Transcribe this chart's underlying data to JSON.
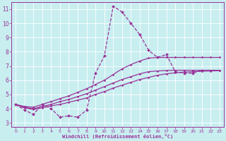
{
  "bg_color": "#c8eef0",
  "line_color": "#993399",
  "grid_color": "#ffffff",
  "ylim_min": 2.7,
  "ylim_max": 11.5,
  "xlim_min": -0.5,
  "xlim_max": 23.5,
  "yticks": [
    3,
    4,
    5,
    6,
    7,
    8,
    9,
    10,
    11
  ],
  "xticks": [
    0,
    1,
    2,
    3,
    4,
    5,
    6,
    7,
    8,
    9,
    10,
    11,
    12,
    13,
    14,
    15,
    16,
    17,
    18,
    19,
    20,
    21,
    22,
    23
  ],
  "xlabel": "Windchill (Refroidissement éolien,°C)",
  "series": [
    {
      "x": [
        0,
        1,
        2,
        3,
        4,
        5,
        6,
        7,
        8,
        9,
        10,
        11,
        12,
        13,
        14,
        15,
        16,
        17,
        18,
        19,
        20,
        21
      ],
      "y": [
        4.3,
        3.9,
        3.6,
        4.3,
        4.0,
        3.4,
        3.5,
        3.4,
        3.9,
        6.5,
        7.7,
        11.2,
        10.8,
        10.0,
        9.2,
        8.1,
        7.6,
        7.8,
        6.6,
        6.5,
        6.5,
        6.7
      ],
      "linestyle": "--",
      "linewidth": 0.9,
      "marker": "D",
      "markersize": 2.0
    },
    {
      "x": [
        0,
        1,
        2,
        3,
        4,
        5,
        6,
        7,
        8,
        9,
        10,
        11,
        12,
        13,
        14,
        15,
        16,
        17,
        18,
        19,
        20,
        21,
        22,
        23
      ],
      "y": [
        4.3,
        4.05,
        3.95,
        4.05,
        4.2,
        4.3,
        4.45,
        4.6,
        4.75,
        5.0,
        5.2,
        5.45,
        5.65,
        5.85,
        6.05,
        6.2,
        6.35,
        6.45,
        6.52,
        6.57,
        6.6,
        6.63,
        6.65,
        6.67
      ],
      "linestyle": "-",
      "linewidth": 0.9,
      "marker": "D",
      "markersize": 1.5
    },
    {
      "x": [
        0,
        1,
        2,
        3,
        4,
        5,
        6,
        7,
        8,
        9,
        10,
        11,
        12,
        13,
        14,
        15,
        16,
        17,
        18,
        19,
        20,
        21,
        22,
        23
      ],
      "y": [
        4.3,
        4.1,
        4.0,
        4.15,
        4.3,
        4.5,
        4.65,
        4.85,
        5.05,
        5.3,
        5.55,
        5.8,
        6.05,
        6.25,
        6.45,
        6.6,
        6.65,
        6.68,
        6.7,
        6.7,
        6.7,
        6.7,
        6.7,
        6.7
      ],
      "linestyle": "-",
      "linewidth": 0.9,
      "marker": "D",
      "markersize": 1.5
    },
    {
      "x": [
        0,
        1,
        2,
        3,
        4,
        5,
        6,
        7,
        8,
        9,
        10,
        11,
        12,
        13,
        14,
        15,
        16,
        17,
        18,
        19,
        20,
        21,
        22,
        23
      ],
      "y": [
        4.3,
        4.15,
        4.1,
        4.3,
        4.5,
        4.7,
        4.9,
        5.15,
        5.4,
        5.7,
        6.0,
        6.4,
        6.8,
        7.1,
        7.35,
        7.55,
        7.6,
        7.6,
        7.6,
        7.6,
        7.6,
        7.6,
        7.6,
        7.6
      ],
      "linestyle": "-",
      "linewidth": 0.9,
      "marker": "D",
      "markersize": 1.5
    }
  ]
}
